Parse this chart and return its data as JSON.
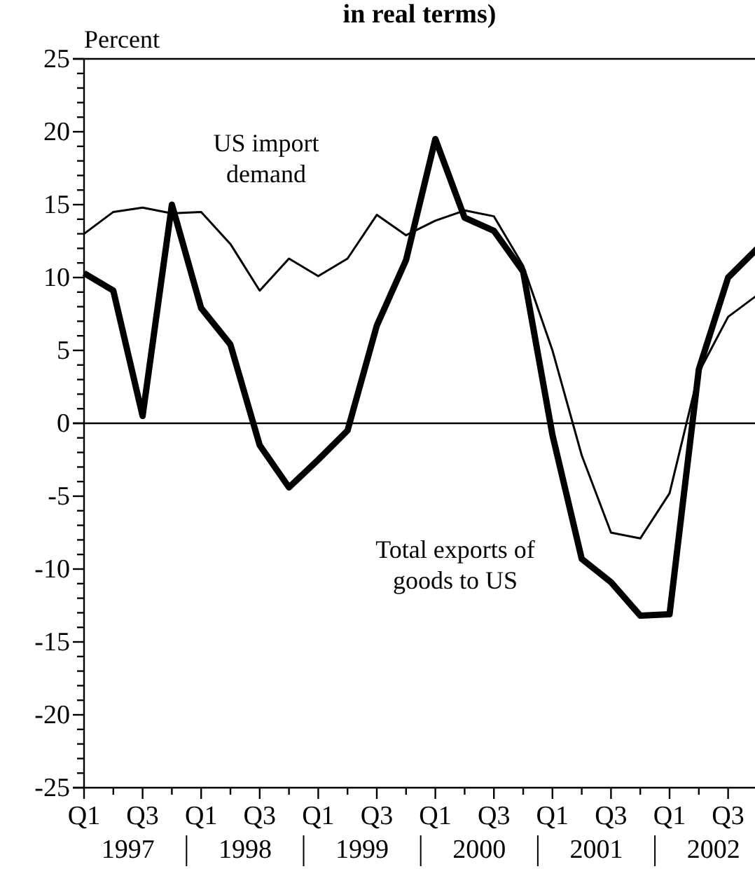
{
  "chart_data": {
    "type": "line",
    "title": "in real terms)",
    "ylabel": "Percent",
    "categories": [
      "Q1",
      null,
      "Q3",
      null,
      "Q1",
      null,
      "Q3",
      null,
      "Q1",
      null,
      "Q3",
      null,
      "Q1",
      null,
      "Q3",
      null,
      "Q1",
      null,
      "Q3",
      null,
      "Q1",
      null,
      "Q3",
      null
    ],
    "annotations": [
      "1997",
      "1998",
      "1999",
      "2000",
      "2001",
      "2002"
    ],
    "ylim": [
      -25,
      25
    ],
    "yticks": [
      -25,
      {
        "value": -24,
        "label": null
      },
      {
        "value": -23,
        "label": null
      },
      {
        "value": -22,
        "label": null
      },
      {
        "value": -21,
        "label": null
      },
      -20,
      {
        "value": -19,
        "label": null
      },
      {
        "value": -18,
        "label": null
      },
      {
        "value": -17,
        "label": null
      },
      {
        "value": -16,
        "label": null
      },
      -15,
      {
        "value": -14,
        "label": null
      },
      {
        "value": -13,
        "label": null
      },
      {
        "value": -12,
        "label": null
      },
      {
        "value": -11,
        "label": null
      },
      -10,
      {
        "value": -9,
        "label": null
      },
      {
        "value": -8,
        "label": null
      },
      {
        "value": -7,
        "label": null
      },
      {
        "value": -6,
        "label": null
      },
      -5,
      {
        "value": -4,
        "label": null
      },
      {
        "value": -3,
        "label": null
      },
      {
        "value": -2,
        "label": null
      },
      {
        "value": -1,
        "label": null
      },
      0,
      {
        "value": 1,
        "label": null
      },
      {
        "value": 2,
        "label": null
      },
      {
        "value": 3,
        "label": null
      },
      {
        "value": 4,
        "label": null
      },
      5,
      {
        "value": 6,
        "label": null
      },
      {
        "value": 7,
        "label": null
      },
      {
        "value": 8,
        "label": null
      },
      {
        "value": 9,
        "label": null
      },
      10,
      {
        "value": 11,
        "label": null
      },
      {
        "value": 12,
        "label": null
      },
      {
        "value": 13,
        "label": null
      },
      {
        "value": 14,
        "label": null
      },
      15,
      {
        "value": 16,
        "label": null
      },
      {
        "value": 17,
        "label": null
      },
      {
        "value": 18,
        "label": null
      },
      {
        "value": 19,
        "label": null
      },
      20,
      {
        "value": 21,
        "label": null
      },
      {
        "value": 22,
        "label": null
      },
      {
        "value": 23,
        "label": null
      },
      {
        "value": 24,
        "label": null
      },
      25
    ],
    "ref_lines": [
      {
        "axis": "y",
        "value": 0,
        "color": "#000000"
      }
    ],
    "series": [
      {
        "name": "US import demand",
        "color": "#000000",
        "values": [
          13,
          14.5,
          14.8,
          14.4,
          14.5,
          12.3,
          9.1,
          11.3,
          10.1,
          11.3,
          14.3,
          12.9,
          13.9,
          14.6,
          14.2,
          10.8,
          5,
          -2.2,
          -7.5,
          -7.9,
          -4.8,
          3.5,
          7.3,
          8.8
        ]
      },
      {
        "name": "Total exports of goods to US",
        "color": "#000000",
        "values": [
          10.3,
          9.1,
          0.5,
          15,
          7.9,
          5.4,
          -1.5,
          -4.4,
          -2.5,
          -0.5,
          6.7,
          11.2,
          19.5,
          14.1,
          13.2,
          10.4,
          -0.8,
          -9.3,
          -10.9,
          -13.2,
          -13.1,
          3.7,
          10,
          12
        ]
      }
    ]
  }
}
